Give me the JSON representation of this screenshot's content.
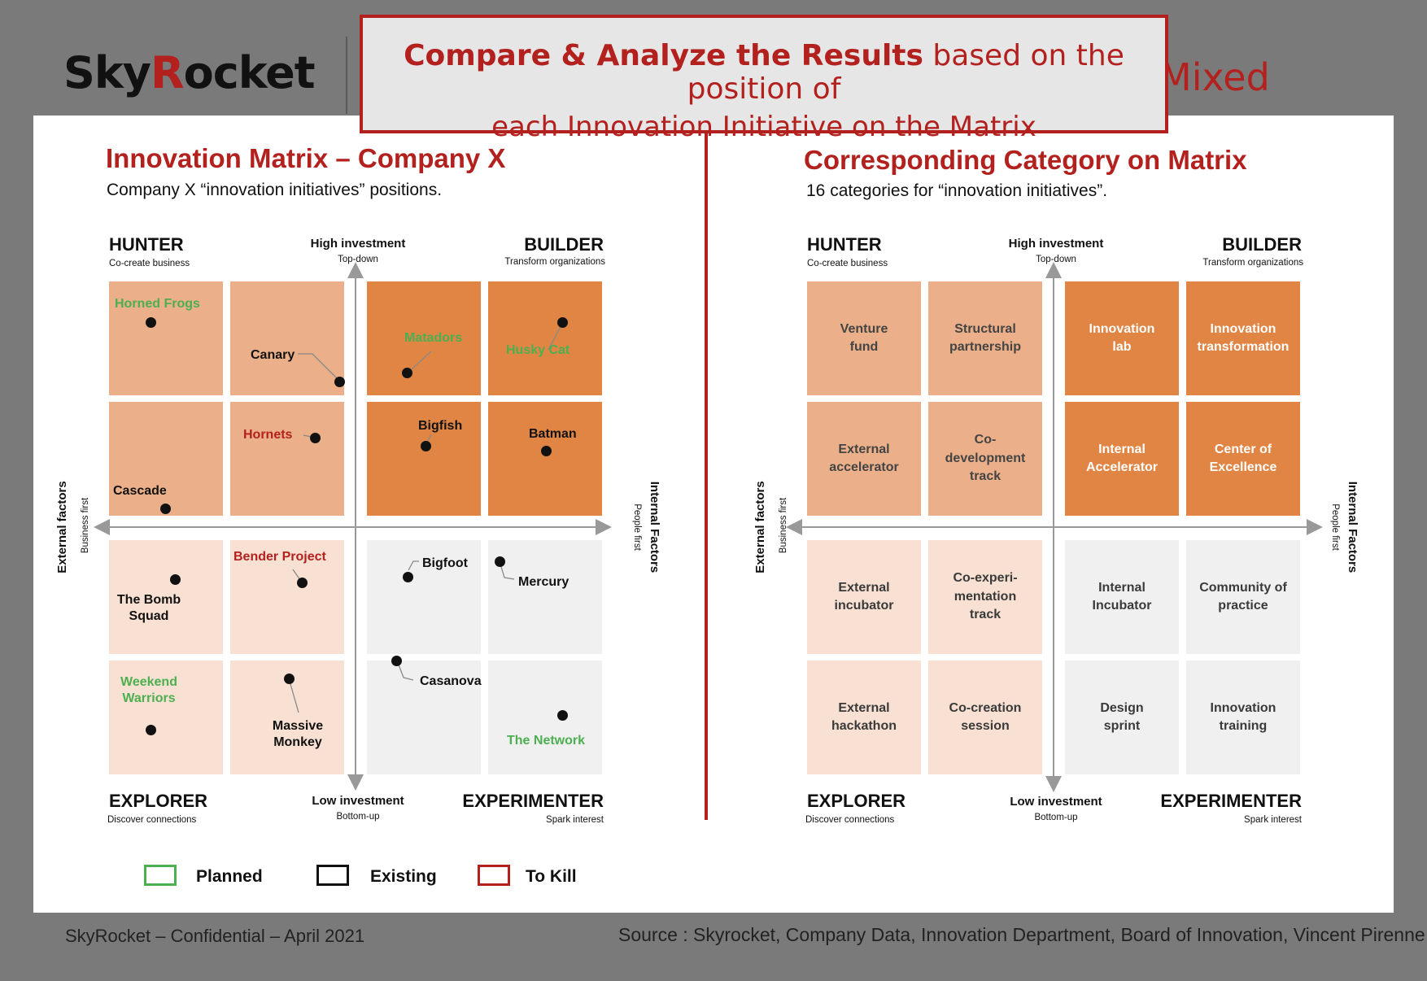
{
  "header": {
    "logo_text_1": "Sky",
    "logo_text_2": "R",
    "logo_text_3": "ocket",
    "mixed_text": "Mixed",
    "callout_bold": "Compare & Analyze the Results",
    "callout_rest": " based on the position of",
    "callout_line2": "each Innovation Initiative on the Matrix"
  },
  "colors": {
    "accent": "#b3211e",
    "dark_orange": "#e08544",
    "med_orange": "#ebb089",
    "light_peach": "#f8e1d3",
    "grey": "#f0f0f0",
    "planned": "#4caf50"
  },
  "left": {
    "title": "Innovation Matrix – Company X",
    "subtitle": "Company X “innovation initiatives” positions.",
    "corners": {
      "hunter": "HUNTER",
      "hunter_sub": "Co-create business",
      "builder": "BUILDER",
      "builder_sub": "Transform organizations",
      "explorer": "EXPLORER",
      "explorer_sub": "Discover connections",
      "experimenter": "EXPERIMENTER",
      "experimenter_sub": "Spark interest"
    },
    "axes": {
      "top": "High investment",
      "top_sub": "Top-down",
      "bottom": "Low investment",
      "bottom_sub": "Bottom-up",
      "left": "External factors",
      "left_sub": "Business first",
      "right": "Internal Factors",
      "right_sub": "People first"
    },
    "initiatives": [
      {
        "name": "Horned Frogs",
        "status": "planned"
      },
      {
        "name": "Canary",
        "status": "existing"
      },
      {
        "name": "Matadors",
        "status": "planned"
      },
      {
        "name": "Husky Cat",
        "status": "planned"
      },
      {
        "name": "Hornets",
        "status": "to_kill"
      },
      {
        "name": "Cascade",
        "status": "existing"
      },
      {
        "name": "Bigfish",
        "status": "existing"
      },
      {
        "name": "Batman",
        "status": "existing"
      },
      {
        "name": "Bender Project",
        "status": "to_kill"
      },
      {
        "name": "The Bomb\nSquad",
        "status": "existing"
      },
      {
        "name": "Bigfoot",
        "status": "existing"
      },
      {
        "name": "Mercury",
        "status": "existing"
      },
      {
        "name": "Weekend\nWarriors",
        "status": "planned"
      },
      {
        "name": "Massive\nMonkey",
        "status": "existing"
      },
      {
        "name": "Casanova",
        "status": "existing"
      },
      {
        "name": "The Network",
        "status": "planned"
      }
    ],
    "legend": {
      "planned": "Planned",
      "existing": "Existing",
      "to_kill": "To Kill"
    }
  },
  "right": {
    "title": "Corresponding Category on Matrix",
    "subtitle": "16 categories for “innovation initiatives”.",
    "corners": {
      "hunter": "HUNTER",
      "hunter_sub": "Co-create business",
      "builder": "BUILDER",
      "builder_sub": "Transform organizations",
      "explorer": "EXPLORER",
      "explorer_sub": "Discover connections",
      "experimenter": "EXPERIMENTER",
      "experimenter_sub": "Spark interest"
    },
    "axes": {
      "top": "High investment",
      "top_sub": "Top-down",
      "bottom": "Low investment",
      "bottom_sub": "Bottom-up",
      "left": "External factors",
      "left_sub": "Business first",
      "right": "Internal Factors",
      "right_sub": "People first"
    },
    "categories": [
      [
        "Venture\nfund",
        "Structural\npartnership",
        "Innovation\nlab",
        "Innovation\ntransformation"
      ],
      [
        "External\naccelerator",
        "Co-\ndevelopment\ntrack",
        "Internal\nAccelerator",
        "Center of\nExcellence"
      ],
      [
        "External\nincubator",
        "Co-experi-\nmentation\ntrack",
        "Internal\nIncubator",
        "Community of\npractice"
      ],
      [
        "External\nhackathon",
        "Co-creation\nsession",
        "Design\nsprint",
        "Innovation\ntraining"
      ]
    ]
  },
  "footer": {
    "left": "SkyRocket – Confidential – April 2021",
    "right": "Source : Skyrocket, Company Data, Innovation Department, Board of Innovation, Vincent Pirenne"
  }
}
